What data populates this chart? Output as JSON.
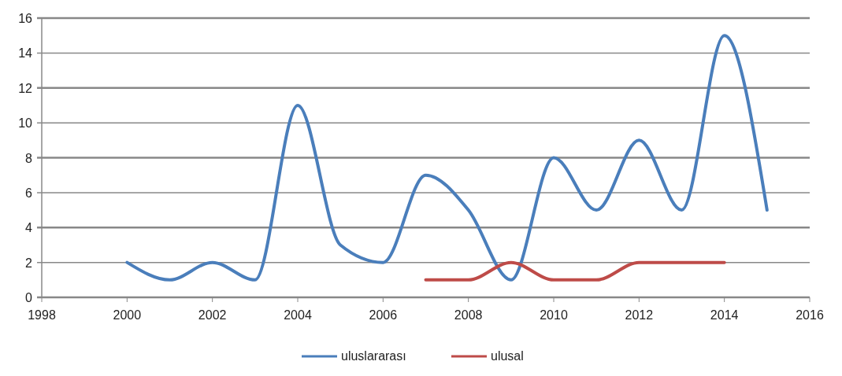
{
  "chart_data": {
    "type": "line",
    "xlim": [
      1998,
      2016
    ],
    "xticks": [
      1998,
      2000,
      2002,
      2004,
      2006,
      2008,
      2010,
      2012,
      2014,
      2016
    ],
    "ylim": [
      0,
      16
    ],
    "yticks": [
      0,
      2,
      4,
      6,
      8,
      10,
      12,
      14,
      16
    ],
    "grid": "y",
    "legend": "bottom",
    "marker": "none",
    "series": [
      {
        "name": "uluslararası",
        "color": "#4a7ebb",
        "x": [
          2000,
          2001,
          2002,
          2003,
          2004,
          2005,
          2006,
          2007,
          2008,
          2009,
          2010,
          2011,
          2012,
          2013,
          2014,
          2015
        ],
        "values": [
          2,
          1,
          2,
          1,
          11,
          3,
          2,
          7,
          5,
          1,
          8,
          5,
          9,
          5,
          15,
          5
        ]
      },
      {
        "name": "ulusal",
        "color": "#be4b48",
        "x": [
          2007,
          2008,
          2009,
          2010,
          2011,
          2012,
          2013,
          2014
        ],
        "values": [
          1,
          1,
          2,
          1,
          1,
          2,
          2,
          2
        ]
      }
    ]
  }
}
